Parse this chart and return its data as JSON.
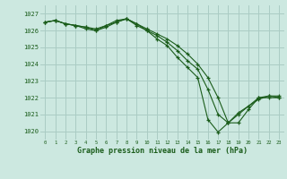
{
  "xlabel": "Graphe pression niveau de la mer (hPa)",
  "bg_color": "#cce8e0",
  "grid_color": "#aaccc4",
  "line_color": "#1a5c1a",
  "ylim": [
    1019.5,
    1027.5
  ],
  "xlim": [
    -0.5,
    23.5
  ],
  "yticks": [
    1020,
    1021,
    1022,
    1023,
    1024,
    1025,
    1026,
    1027
  ],
  "xticks": [
    0,
    1,
    2,
    3,
    4,
    5,
    6,
    7,
    8,
    9,
    10,
    11,
    12,
    13,
    14,
    15,
    16,
    17,
    18,
    19,
    20,
    21,
    22,
    23
  ],
  "series": [
    [
      1026.5,
      1026.6,
      1026.4,
      1026.3,
      1026.2,
      1026.1,
      1026.3,
      1026.5,
      1026.7,
      1026.3,
      1026.0,
      1025.5,
      1025.1,
      1024.4,
      1023.8,
      1023.2,
      1020.7,
      1019.95,
      1020.5,
      1021.0,
      1021.5,
      1022.0,
      1022.0,
      1022.0
    ],
    [
      1026.5,
      1026.6,
      1026.4,
      1026.3,
      1026.1,
      1026.0,
      1026.3,
      1026.6,
      1026.7,
      1026.4,
      1026.0,
      1025.7,
      1025.3,
      1024.8,
      1024.2,
      1023.7,
      1022.5,
      1021.0,
      1020.5,
      1021.1,
      1021.5,
      1021.9,
      1022.1,
      1022.0
    ],
    [
      1026.5,
      1026.6,
      1026.4,
      1026.3,
      1026.2,
      1026.0,
      1026.2,
      1026.5,
      1026.7,
      1026.4,
      1026.1,
      1025.8,
      1025.5,
      1025.1,
      1024.6,
      1024.0,
      1023.2,
      1022.0,
      1020.5,
      1020.5,
      1021.3,
      1022.0,
      1022.1,
      1022.1
    ]
  ]
}
